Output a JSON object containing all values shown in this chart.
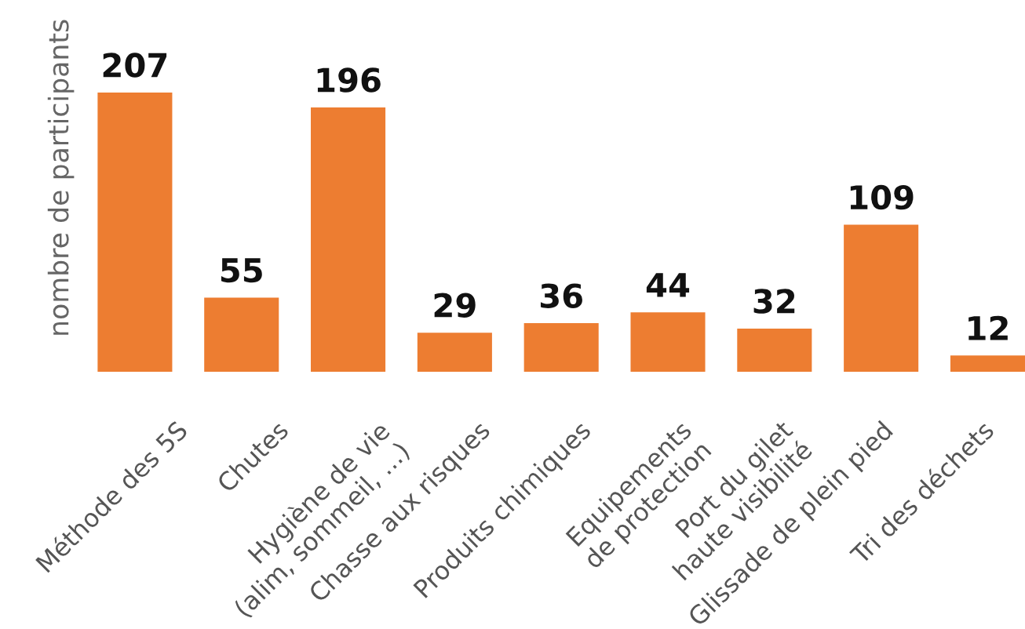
{
  "chart_data": {
    "type": "bar",
    "ylabel": "nombre de participants",
    "categories": [
      "Méthode des 5S",
      "Chutes",
      "Hygiène de vie\n(alim, sommeil, ...)",
      "Chasse aux risques",
      "Produits chimiques",
      "Equipements\nde protection",
      "Port du gilet\nhaute visibilité",
      "Glissade de plein pied",
      "Tri des déchets"
    ],
    "values": [
      207,
      55,
      196,
      29,
      36,
      44,
      32,
      109,
      12
    ],
    "color": "#ed7d31",
    "data_labels": true,
    "tick_labels": "x"
  }
}
